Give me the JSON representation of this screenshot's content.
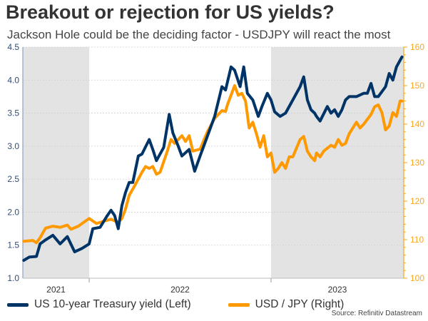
{
  "title": "Breakout or rejection for US yields?",
  "subtitle": "Jackson Hole could be the deciding factor - USDJPY will react the most",
  "source": "Source: Refinitiv Datastream",
  "colors": {
    "yield": "#003366",
    "usdjpy": "#FF9900",
    "shade": "#e3e3e3",
    "left_axis": "#2f4d7a",
    "right_axis": "#f5a623"
  },
  "chart_data": {
    "type": "line",
    "title": "Breakout or rejection for US yields?",
    "xlim": [
      2021.635,
      2023.73
    ],
    "year_labels": [
      {
        "label": "2021",
        "from": 2021.635,
        "to": 2022.0,
        "shaded": true
      },
      {
        "label": "2022",
        "from": 2022.0,
        "to": 2023.0,
        "shaded": false
      },
      {
        "label": "2023",
        "from": 2023.0,
        "to": 2023.73,
        "shaded": true
      }
    ],
    "left_axis": {
      "ylim": [
        1.0,
        4.5
      ],
      "ticks": [
        "1.0",
        "1.5",
        "2.0",
        "2.5",
        "3.0",
        "3.5",
        "4.0",
        "4.5"
      ]
    },
    "right_axis": {
      "ylim": [
        100,
        160
      ],
      "ticks": [
        "100",
        "110",
        "120",
        "130",
        "140",
        "150",
        "160"
      ]
    },
    "grid": true,
    "legend_position": "bottom",
    "series": [
      {
        "name": "US 10-year Treasury yield (Left)",
        "axis": "left",
        "x": [
          2021.64,
          2021.67,
          2021.71,
          2021.73,
          2021.76,
          2021.8,
          2021.84,
          2021.88,
          2021.92,
          2021.96,
          2022.0,
          2022.02,
          2022.06,
          2022.1,
          2022.12,
          2022.14,
          2022.16,
          2022.18,
          2022.2,
          2022.22,
          2022.24,
          2022.27,
          2022.29,
          2022.33,
          2022.35,
          2022.37,
          2022.41,
          2022.44,
          2022.46,
          2022.49,
          2022.51,
          2022.55,
          2022.58,
          2022.61,
          2022.65,
          2022.69,
          2022.73,
          2022.75,
          2022.78,
          2022.8,
          2022.83,
          2022.85,
          2022.87,
          2022.9,
          2022.93,
          2022.95,
          2022.98,
          2023.0,
          2023.02,
          2023.05,
          2023.08,
          2023.12,
          2023.16,
          2023.18,
          2023.2,
          2023.22,
          2023.24,
          2023.25,
          2023.27,
          2023.31,
          2023.33,
          2023.35,
          2023.37,
          2023.39,
          2023.41,
          2023.43,
          2023.47,
          2023.51,
          2023.53,
          2023.55,
          2023.57,
          2023.59,
          2023.63,
          2023.65,
          2023.67,
          2023.69,
          2023.71,
          2023.72
        ],
        "values": [
          1.27,
          1.32,
          1.33,
          1.52,
          1.58,
          1.65,
          1.52,
          1.63,
          1.4,
          1.45,
          1.52,
          1.75,
          1.77,
          1.95,
          2.03,
          1.95,
          1.75,
          2.1,
          2.3,
          2.45,
          2.45,
          2.85,
          2.88,
          3.1,
          2.95,
          2.78,
          2.98,
          3.48,
          3.2,
          3.0,
          2.85,
          2.95,
          2.62,
          2.85,
          3.15,
          3.45,
          3.9,
          3.85,
          4.2,
          4.15,
          3.9,
          4.2,
          3.8,
          3.7,
          3.45,
          3.6,
          3.8,
          3.7,
          3.52,
          3.45,
          3.5,
          3.7,
          3.9,
          4.05,
          3.7,
          3.55,
          3.5,
          3.45,
          3.38,
          3.6,
          3.5,
          3.55,
          3.45,
          3.55,
          3.7,
          3.75,
          3.75,
          3.8,
          3.8,
          3.95,
          3.75,
          3.75,
          3.9,
          4.1,
          4.0,
          4.2,
          4.3,
          4.35
        ]
      },
      {
        "name": "USD / JPY (Right)",
        "axis": "right",
        "x": [
          2021.64,
          2021.69,
          2021.71,
          2021.73,
          2021.76,
          2021.8,
          2021.84,
          2021.88,
          2021.9,
          2021.94,
          2022.0,
          2022.04,
          2022.08,
          2022.12,
          2022.16,
          2022.18,
          2022.2,
          2022.22,
          2022.25,
          2022.29,
          2022.31,
          2022.33,
          2022.35,
          2022.37,
          2022.39,
          2022.43,
          2022.45,
          2022.47,
          2022.51,
          2022.53,
          2022.55,
          2022.57,
          2022.61,
          2022.65,
          2022.69,
          2022.73,
          2022.75,
          2022.76,
          2022.8,
          2022.82,
          2022.84,
          2022.86,
          2022.88,
          2022.9,
          2022.92,
          2022.94,
          2022.96,
          2022.98,
          2023.0,
          2023.02,
          2023.04,
          2023.06,
          2023.08,
          2023.1,
          2023.12,
          2023.16,
          2023.18,
          2023.2,
          2023.22,
          2023.24,
          2023.25,
          2023.27,
          2023.29,
          2023.33,
          2023.35,
          2023.37,
          2023.39,
          2023.41,
          2023.43,
          2023.45,
          2023.47,
          2023.49,
          2023.51,
          2023.55,
          2023.57,
          2023.59,
          2023.61,
          2023.63,
          2023.65,
          2023.67,
          2023.69,
          2023.71,
          2023.72
        ],
        "values": [
          109.6,
          109.8,
          109.2,
          110.5,
          113.0,
          113.5,
          113.2,
          113.8,
          112.7,
          113.5,
          115.5,
          114.2,
          114.8,
          115.3,
          114.5,
          115.5,
          118.0,
          121.5,
          124.0,
          127.5,
          129.0,
          128.5,
          129.0,
          127.0,
          127.5,
          133.0,
          136.0,
          135.0,
          137.0,
          135.5,
          137.0,
          133.0,
          133.5,
          138.0,
          141.5,
          143.5,
          143.3,
          145.0,
          150.0,
          147.5,
          148.0,
          146.0,
          139.0,
          140.5,
          137.5,
          134.0,
          137.0,
          131.5,
          132.5,
          127.5,
          128.5,
          130.0,
          128.5,
          131.5,
          131.5,
          136.0,
          136.8,
          133.0,
          131.5,
          130.5,
          132.5,
          131.5,
          133.0,
          134.5,
          134.0,
          136.0,
          134.5,
          135.0,
          137.5,
          139.0,
          140.5,
          139.0,
          140.0,
          142.5,
          144.5,
          145.0,
          143.0,
          138.5,
          139.5,
          143.0,
          142.0,
          146.0,
          146.0
        ]
      }
    ]
  }
}
